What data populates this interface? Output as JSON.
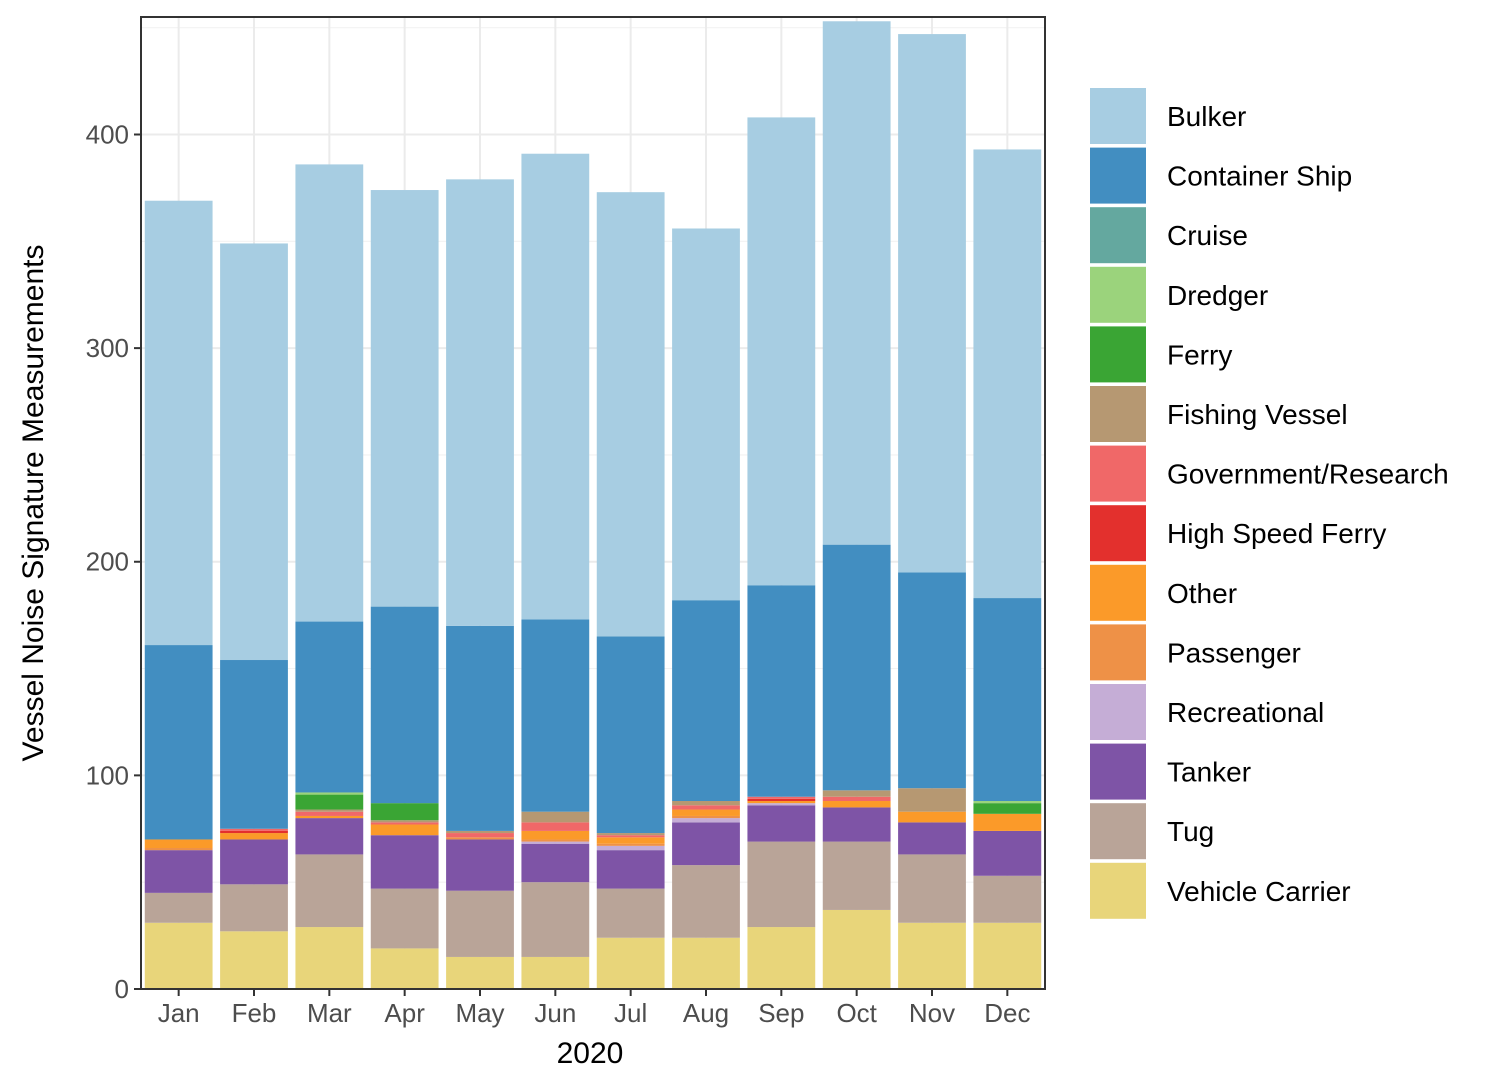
{
  "chart_data": {
    "type": "stacked-bar",
    "title": "",
    "xlabel": "2020",
    "ylabel": "Vessel Noise Signature Measurements",
    "ylim": [
      0,
      455
    ],
    "yticks": [
      0,
      100,
      200,
      300,
      400
    ],
    "categories": [
      "Jan",
      "Feb",
      "Mar",
      "Apr",
      "May",
      "Jun",
      "Jul",
      "Aug",
      "Sep",
      "Oct",
      "Nov",
      "Dec"
    ],
    "series": [
      {
        "name": "Vehicle Carrier",
        "color": "#E8D57A",
        "values": [
          31,
          27,
          29,
          19,
          15,
          15,
          24,
          24,
          29,
          37,
          31,
          31
        ]
      },
      {
        "name": "Tug",
        "color": "#B9A498",
        "values": [
          14,
          22,
          34,
          28,
          31,
          35,
          23,
          34,
          40,
          32,
          32,
          22
        ]
      },
      {
        "name": "Tanker",
        "color": "#7E54A6",
        "values": [
          20,
          21,
          17,
          25,
          24,
          18,
          18,
          20,
          17,
          16,
          15,
          21
        ]
      },
      {
        "name": "Recreational",
        "color": "#C5ADD6",
        "values": [
          0,
          0,
          0,
          0,
          0,
          1,
          2,
          2,
          1,
          0,
          0,
          0
        ]
      },
      {
        "name": "Passenger",
        "color": "#EE9147",
        "values": [
          1,
          0,
          0,
          0,
          1,
          1,
          1,
          1,
          0,
          0,
          0,
          0
        ]
      },
      {
        "name": "Other",
        "color": "#FB9A29",
        "values": [
          4,
          3,
          1,
          5,
          0,
          4,
          3,
          3,
          1,
          3,
          5,
          8
        ]
      },
      {
        "name": "High Speed Ferry",
        "color": "#E3302D",
        "values": [
          0,
          1,
          0,
          0,
          0,
          0,
          0,
          0,
          1,
          0,
          0,
          0
        ]
      },
      {
        "name": "Government/Research",
        "color": "#F06868",
        "values": [
          0,
          1,
          2,
          1,
          2,
          4,
          1,
          2,
          1,
          2,
          0,
          0
        ]
      },
      {
        "name": "Fishing Vessel",
        "color": "#B69872",
        "values": [
          0,
          0,
          1,
          1,
          1,
          5,
          1,
          2,
          0,
          3,
          11,
          0
        ]
      },
      {
        "name": "Ferry",
        "color": "#3AA534",
        "values": [
          0,
          0,
          7,
          8,
          0,
          0,
          0,
          0,
          0,
          0,
          0,
          5
        ]
      },
      {
        "name": "Dredger",
        "color": "#9BD37C",
        "values": [
          0,
          0,
          1,
          0,
          0,
          0,
          0,
          0,
          0,
          0,
          0,
          1
        ]
      },
      {
        "name": "Cruise",
        "color": "#64A89F",
        "values": [
          0,
          0,
          0,
          0,
          0,
          0,
          0,
          0,
          0,
          0,
          0,
          0
        ]
      },
      {
        "name": "Container Ship",
        "color": "#428EC1",
        "values": [
          91,
          79,
          80,
          92,
          96,
          90,
          92,
          94,
          99,
          115,
          101,
          95
        ]
      },
      {
        "name": "Bulker",
        "color": "#A7CDE2",
        "values": [
          208,
          195,
          214,
          195,
          209,
          218,
          208,
          174,
          219,
          245,
          252,
          210
        ]
      }
    ],
    "legend": {
      "position": "right",
      "order": [
        "Bulker",
        "Container Ship",
        "Cruise",
        "Dredger",
        "Ferry",
        "Fishing Vessel",
        "Government/Research",
        "High Speed Ferry",
        "Other",
        "Passenger",
        "Recreational",
        "Tanker",
        "Tug",
        "Vehicle Carrier"
      ]
    },
    "grid": true,
    "theme": "bw"
  }
}
